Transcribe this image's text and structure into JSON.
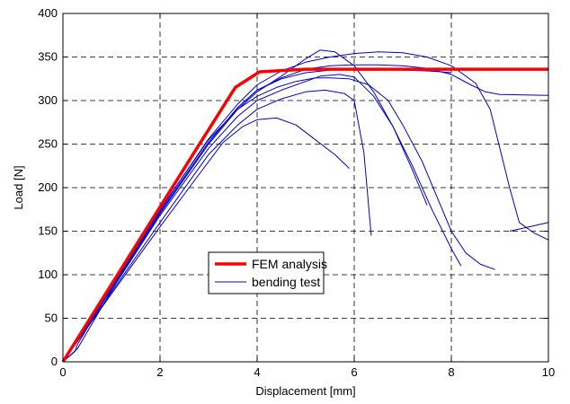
{
  "colors": {
    "fem": "#ff0000",
    "test": "#0000cc",
    "grid": "#000000",
    "background": "#ffffff"
  },
  "chart_data": {
    "type": "line",
    "title": "",
    "xlabel": "Displacement [mm]",
    "ylabel": "Load [N]",
    "xlim": [
      0,
      10
    ],
    "ylim": [
      0,
      400
    ],
    "xticks": [
      0,
      2,
      4,
      6,
      8,
      10
    ],
    "yticks": [
      0,
      50,
      100,
      150,
      200,
      250,
      300,
      350,
      400
    ],
    "xtick_labels": [
      "0",
      "2",
      "4",
      "6",
      "8",
      "10"
    ],
    "ytick_labels": [
      "0",
      "50",
      "100",
      "150",
      "200",
      "250",
      "300",
      "350",
      "400"
    ],
    "grid": true,
    "grid_style": "dashed",
    "legend_position": "lower-center",
    "legend": [
      {
        "name": "FEM analysis",
        "color": "#ff0000"
      },
      {
        "name": "bending test",
        "color": "#0000cc"
      }
    ],
    "series": [
      {
        "name": "FEM analysis",
        "color": "#ff0000",
        "width": 3.5,
        "x": [
          0,
          2.7,
          3.55,
          4.05,
          5.0,
          10.0
        ],
        "y": [
          0,
          240,
          315,
          333,
          336,
          336
        ]
      }
    ],
    "test_curves": [
      {
        "x": [
          0,
          0.25,
          0.3,
          1.0,
          2.0,
          3.0,
          3.6,
          4.0,
          4.4,
          4.8,
          5.2,
          5.5,
          5.9,
          6.3,
          6.7,
          7.0,
          7.4,
          7.7,
          8.0,
          8.3,
          8.6,
          8.9
        ],
        "y": [
          0,
          12,
          20,
          85,
          175,
          255,
          290,
          305,
          315,
          322,
          326,
          326,
          325,
          318,
          300,
          272,
          230,
          190,
          150,
          125,
          112,
          106
        ]
      },
      {
        "x": [
          0,
          0.3,
          1.0,
          2.0,
          3.0,
          3.6,
          4.0,
          4.5,
          5.0,
          5.3,
          5.7,
          6.0,
          6.4,
          6.8,
          7.2,
          7.6,
          8.0,
          8.2
        ],
        "y": [
          0,
          15,
          82,
          168,
          245,
          282,
          300,
          312,
          322,
          328,
          330,
          327,
          305,
          270,
          225,
          175,
          130,
          110
        ]
      },
      {
        "x": [
          0,
          1.0,
          2.0,
          3.0,
          3.6,
          4.0,
          4.5,
          5.0,
          5.4,
          5.8,
          6.0,
          6.2,
          6.35
        ],
        "y": [
          0,
          80,
          160,
          238,
          272,
          290,
          302,
          310,
          312,
          308,
          300,
          240,
          145
        ]
      },
      {
        "x": [
          0,
          1.0,
          2.0,
          2.8,
          3.3,
          3.7,
          4.0,
          4.4,
          4.8,
          5.2,
          5.6,
          5.9
        ],
        "y": [
          0,
          78,
          155,
          215,
          252,
          270,
          278,
          280,
          272,
          255,
          238,
          222
        ]
      },
      {
        "x": [
          0,
          1.0,
          2.0,
          3.0,
          3.6,
          4.0,
          4.5,
          5.0,
          5.5,
          6.0,
          6.5,
          7.0,
          7.5,
          7.8,
          8.0
        ],
        "y": [
          0,
          85,
          172,
          252,
          292,
          312,
          325,
          332,
          335,
          336,
          336,
          335,
          334,
          333,
          332
        ]
      },
      {
        "x": [
          0,
          1.0,
          2.0,
          3.0,
          3.6,
          4.0,
          4.5,
          5.0,
          5.3,
          5.6,
          6.0,
          6.4,
          6.8,
          7.2,
          7.5
        ],
        "y": [
          0,
          83,
          170,
          250,
          290,
          310,
          328,
          348,
          358,
          356,
          340,
          310,
          270,
          220,
          180
        ]
      },
      {
        "x": [
          0,
          1.0,
          2.0,
          3.0,
          3.6,
          4.0,
          4.5,
          5.0,
          5.5,
          6.0,
          6.5,
          7.0,
          7.5,
          8.0,
          8.4,
          8.7,
          9.0,
          10.0
        ],
        "y": [
          0,
          84,
          172,
          252,
          292,
          312,
          326,
          336,
          340,
          341,
          341,
          340,
          337,
          330,
          318,
          310,
          307,
          306
        ]
      },
      {
        "x": [
          0,
          1.0,
          2.0,
          3.0,
          3.6,
          4.0,
          4.5,
          5.0,
          5.5,
          6.0,
          6.5,
          7.0,
          7.5,
          8.0,
          8.5,
          8.8,
          9.0,
          9.2,
          9.4,
          9.7,
          10.0
        ],
        "y": [
          0,
          86,
          174,
          256,
          296,
          318,
          334,
          344,
          350,
          354,
          356,
          355,
          350,
          340,
          320,
          290,
          245,
          200,
          160,
          148,
          140
        ]
      },
      {
        "x": [
          9.2,
          9.6,
          10.0
        ],
        "y": [
          150,
          155,
          160
        ]
      }
    ]
  }
}
